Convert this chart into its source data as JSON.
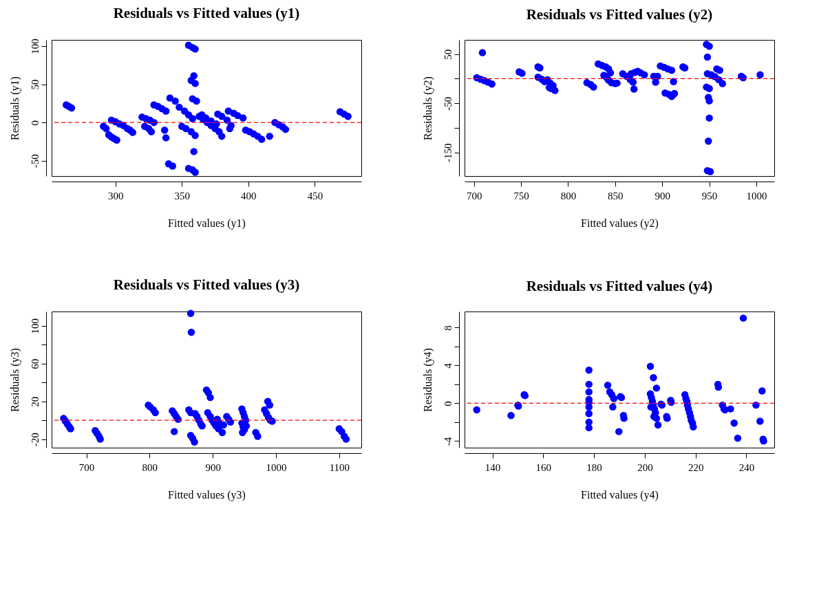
{
  "chart_data": [
    {
      "type": "scatter",
      "title": "Residuals vs Fitted values (y1)",
      "xlabel": "Fitted values (y1)",
      "ylabel": "Residuals (y1)",
      "marker": "circle",
      "grid": false,
      "color": "#0000ff",
      "x": [
        263,
        265,
        267,
        291,
        293,
        295,
        297,
        299,
        301,
        297,
        300,
        303,
        306,
        309,
        311,
        313,
        320,
        323,
        326,
        329,
        322,
        325,
        327,
        329,
        332,
        335,
        338,
        337,
        338,
        340,
        343,
        341,
        345,
        348,
        352,
        355,
        358,
        350,
        353,
        357,
        360,
        355,
        358,
        360,
        357,
        359,
        360,
        358,
        361,
        359,
        355,
        358,
        360,
        363,
        366,
        369,
        372,
        375,
        378,
        380,
        365,
        368,
        372,
        376,
        377,
        380,
        384,
        387,
        386,
        385,
        389,
        392,
        396,
        398,
        401,
        404,
        407,
        410,
        416,
        420,
        423,
        426,
        428,
        469,
        472,
        475
      ],
      "values": [
        23,
        21,
        19,
        -5,
        -8,
        -16,
        -19,
        -21,
        -23,
        3,
        1,
        -2,
        -4,
        -8,
        -10,
        -13,
        7,
        5,
        3,
        0,
        -5,
        -8,
        -12,
        23,
        21,
        18,
        15,
        -10,
        -20,
        -54,
        -57,
        32,
        28,
        20,
        15,
        10,
        5,
        -5,
        -8,
        -12,
        -17,
        101,
        98,
        96,
        55,
        61,
        51,
        31,
        28,
        -38,
        -60,
        -62,
        -65,
        8,
        4,
        0,
        -4,
        -8,
        -12,
        -18,
        10,
        6,
        2,
        -2,
        11,
        8,
        3,
        -4,
        -8,
        15,
        12,
        9,
        6,
        -10,
        -12,
        -15,
        -18,
        -22,
        -18,
        0,
        -3,
        -6,
        -9,
        14,
        11,
        8
      ],
      "xlim": [
        252,
        485
      ],
      "ylim": [
        -70,
        108
      ],
      "xticks": [
        300,
        350,
        400,
        450
      ],
      "yticks": [
        -50,
        0,
        50,
        100
      ],
      "ref_lines": [
        {
          "axis": "y",
          "value": 0,
          "color": "#ff0000",
          "line_style": "dashed"
        }
      ]
    },
    {
      "type": "scatter",
      "title": "Residuals vs Fitted values (y2)",
      "xlabel": "Fitted values (y2)",
      "ylabel": "Residuals (y2)",
      "marker": "circle",
      "grid": false,
      "color": "#0000ff",
      "x": [
        703,
        707,
        711,
        715,
        719,
        709,
        748,
        751,
        768,
        770,
        768,
        772,
        775,
        778,
        781,
        784,
        786,
        780,
        782,
        820,
        824,
        827,
        832,
        836,
        840,
        843,
        838,
        841,
        843,
        846,
        850,
        852,
        845,
        858,
        862,
        866,
        869,
        870,
        867,
        871,
        874,
        877,
        881,
        891,
        893,
        895,
        898,
        902,
        906,
        910,
        903,
        907,
        910,
        912,
        913,
        912,
        922,
        924,
        947,
        950,
        948,
        948,
        952,
        956,
        960,
        964,
        958,
        961,
        947,
        950,
        949,
        950,
        950,
        949,
        948,
        951,
        984,
        986,
        1004
      ],
      "values": [
        2,
        -1,
        -4,
        -7,
        -11,
        53,
        14,
        11,
        24,
        22,
        3,
        -1,
        -6,
        -2,
        -9,
        -14,
        -24,
        -18,
        -20,
        -8,
        -12,
        -17,
        30,
        27,
        24,
        20,
        7,
        2,
        -3,
        -8,
        -10,
        -9,
        12,
        10,
        5,
        -2,
        -7,
        -21,
        10,
        13,
        15,
        12,
        8,
        5,
        -7,
        5,
        26,
        23,
        20,
        17,
        -29,
        -32,
        -36,
        -32,
        -30,
        -6,
        24,
        22,
        70,
        66,
        44,
        10,
        8,
        4,
        -2,
        -10,
        20,
        17,
        -17,
        -20,
        -38,
        -45,
        -80,
        -127,
        -187,
        -189,
        5,
        2,
        8
      ],
      "xlim": [
        690,
        1019
      ],
      "ylim": [
        -198,
        79
      ],
      "xticks": [
        700,
        750,
        800,
        850,
        900,
        950,
        1000
      ],
      "yticks": [
        50,
        {
          "value": 0,
          "label": null
        },
        -50,
        {
          "value": -100,
          "label": null
        },
        -150
      ],
      "ref_lines": [
        {
          "axis": "y",
          "value": 0,
          "color": "#ff0000",
          "line_style": "dashed"
        }
      ]
    },
    {
      "type": "scatter",
      "title": "Residuals vs Fitted values (y3)",
      "xlabel": "Fitted values (y3)",
      "ylabel": "Residuals (y3)",
      "marker": "circle",
      "grid": false,
      "color": "#0000ff",
      "x": [
        664,
        667,
        670,
        673,
        675,
        714,
        717,
        720,
        722,
        798,
        801,
        806,
        809,
        836,
        839,
        842,
        845,
        839,
        862,
        865,
        865,
        868,
        871,
        865,
        866,
        872,
        875,
        878,
        881,
        883,
        890,
        893,
        896,
        892,
        896,
        899,
        902,
        905,
        909,
        907,
        910,
        915,
        917,
        922,
        925,
        928,
        946,
        948,
        950,
        952,
        946,
        948,
        950,
        947,
        953,
        968,
        971,
        982,
        985,
        988,
        991,
        994,
        987,
        990,
        1100,
        1104,
        1108,
        1111
      ],
      "values": [
        2,
        -1,
        -4,
        -7,
        -9,
        -11,
        -14,
        -17,
        -20,
        16,
        14,
        11,
        8,
        10,
        7,
        4,
        1,
        -12,
        11,
        8,
        -16,
        -19,
        -23,
        113,
        93,
        7,
        4,
        0,
        -4,
        -6,
        32,
        29,
        24,
        8,
        4,
        0,
        -3,
        -6,
        -9,
        1,
        -3,
        -13,
        -5,
        4,
        1,
        -2,
        12,
        8,
        4,
        0,
        -3,
        -7,
        -10,
        -13,
        -6,
        -13,
        -17,
        11,
        7,
        3,
        0,
        -1,
        20,
        16,
        -9,
        -12,
        -17,
        -20
      ],
      "xlim": [
        645,
        1135
      ],
      "ylim": [
        -29,
        115
      ],
      "xticks": [
        700,
        800,
        900,
        1000,
        1100
      ],
      "yticks": [
        -20,
        {
          "value": 0,
          "label": null
        },
        20,
        {
          "value": 40,
          "label": null
        },
        60,
        {
          "value": 80,
          "label": null
        },
        100
      ],
      "ref_lines": [
        {
          "axis": "y",
          "value": 0,
          "color": "#ff0000",
          "line_style": "dashed"
        }
      ]
    },
    {
      "type": "scatter",
      "title": "Residuals vs Fitted values (y4)",
      "xlabel": "Fitted values (y4)",
      "ylabel": "Residuals (y4)",
      "marker": "circle",
      "grid": false,
      "color": "#0000ff",
      "x": [
        133.8,
        147.3,
        150,
        150.2,
        152.5,
        152.8,
        178,
        178,
        178,
        178,
        178,
        178,
        178,
        178,
        178,
        185.4,
        186.2,
        187,
        187.8,
        187.4,
        190.4,
        190.8,
        189.8,
        191.6,
        191.8,
        202.2,
        203.4,
        204.6,
        202.2,
        202.6,
        203,
        203.3,
        202.4,
        203.8,
        204.2,
        203.6,
        204.6,
        205.2,
        206.4,
        206.8,
        208.6,
        208.8,
        210.2,
        210.4,
        215.8,
        216.2,
        216.6,
        216.8,
        217.2,
        217.6,
        218,
        218.3,
        218.8,
        219.1,
        228.8,
        229,
        230.6,
        231.2,
        231.6,
        233.8,
        235.2,
        236.6,
        238.8,
        243.8,
        245.4,
        246.2,
        246.6,
        246.8
      ],
      "values": [
        -0.7,
        -1.3,
        -0.2,
        -0.3,
        0.9,
        0.8,
        3.5,
        2.0,
        1.2,
        0.4,
        0.1,
        -0.4,
        -1.1,
        -2.0,
        -2.6,
        1.9,
        1.2,
        0.9,
        0.5,
        -0.4,
        0.7,
        0.6,
        -3.0,
        -1.3,
        -1.6,
        3.9,
        2.7,
        1.6,
        1.0,
        0.6,
        0.2,
        -0.2,
        -0.4,
        -0.6,
        -1.0,
        -1.4,
        -1.6,
        -2.3,
        -0.1,
        -0.2,
        -1.4,
        -1.6,
        0.3,
        0.1,
        0.9,
        0.5,
        0.2,
        -0.2,
        -0.6,
        -1.0,
        -1.4,
        -1.8,
        -2.1,
        -2.5,
        2.0,
        1.7,
        -0.2,
        -0.6,
        -0.7,
        -0.6,
        -2.1,
        -3.7,
        9.0,
        -0.2,
        -1.9,
        1.3,
        -3.8,
        -4.0
      ],
      "xlim": [
        129,
        251
      ],
      "ylim": [
        -4.7,
        9.7
      ],
      "xticks": [
        140,
        160,
        180,
        200,
        220,
        240
      ],
      "yticks": [
        -4,
        {
          "value": -2,
          "label": null
        },
        0,
        {
          "value": 2,
          "label": null
        },
        4,
        {
          "value": 6,
          "label": null
        },
        8
      ],
      "ref_lines": [
        {
          "axis": "y",
          "value": 0,
          "color": "#ff0000",
          "line_style": "dashed"
        }
      ]
    }
  ]
}
